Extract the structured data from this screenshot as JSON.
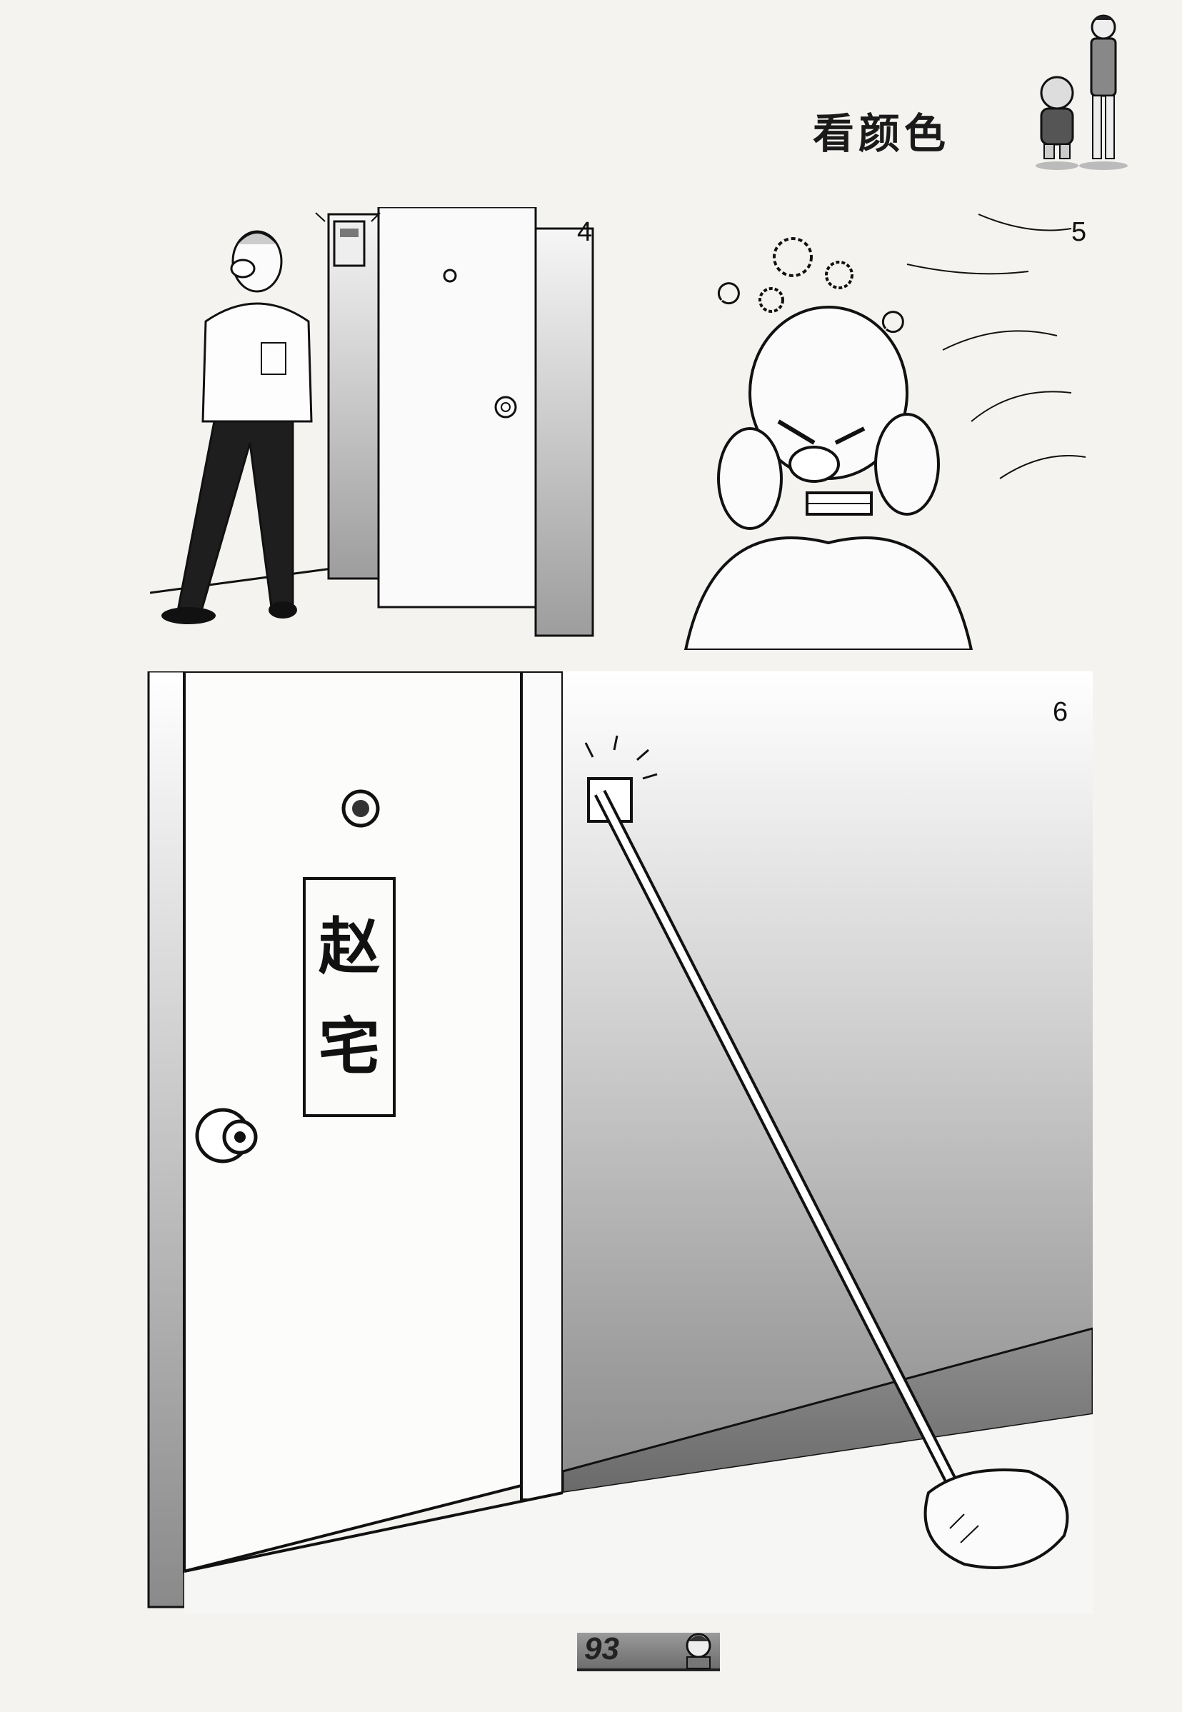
{
  "header": {
    "title": "看颜色",
    "mascot_icon": "two-characters-icon"
  },
  "panels": [
    {
      "number": "4",
      "description_icon": "man-walking-icon"
    },
    {
      "number": "5",
      "description_icon": "man-covering-ears-icon"
    },
    {
      "number": "6",
      "description_icon": "doorbell-stick-icon"
    }
  ],
  "door_plaque": {
    "line1": "赵",
    "line2": "宅"
  },
  "footer": {
    "page_number": "93"
  }
}
